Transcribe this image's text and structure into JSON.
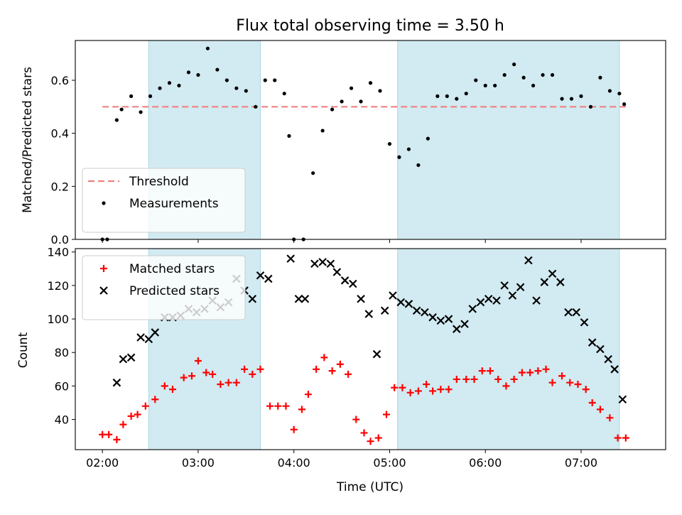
{
  "chart_data": [
    {
      "type": "scatter",
      "title": "Flux total observing time = 3.50 h",
      "xlabel": "",
      "ylabel": "Matched/Predicted stars",
      "xlim": [
        "01:43",
        "07:53"
      ],
      "ylim": [
        0,
        0.75
      ],
      "yticks": [
        0.0,
        0.2,
        0.4,
        0.6
      ],
      "ytick_labels": [
        "0.0",
        "0.2",
        "0.4",
        "0.6"
      ],
      "legend_position": "lower-left",
      "shaded_intervals": [
        [
          "02:29",
          "03:39"
        ],
        [
          "05:05",
          "07:24"
        ]
      ],
      "shade_color": "#add8e6",
      "threshold": {
        "name": "Threshold",
        "value": 0.5,
        "x_range": [
          "02:00",
          "07:28"
        ],
        "color": "#f08080",
        "style": "dashed"
      },
      "series": [
        {
          "name": "Measurements",
          "color": "#000000",
          "marker": "dot",
          "x": [
            "02:00",
            "02:03",
            "02:09",
            "02:12",
            "02:18",
            "02:24",
            "02:30",
            "02:36",
            "02:42",
            "02:48",
            "02:54",
            "03:00",
            "03:06",
            "03:12",
            "03:18",
            "03:24",
            "03:30",
            "03:36",
            "03:42",
            "03:48",
            "03:54",
            "03:57",
            "04:00",
            "04:06",
            "04:12",
            "04:18",
            "04:24",
            "04:30",
            "04:36",
            "04:42",
            "04:48",
            "04:54",
            "05:00",
            "05:06",
            "05:12",
            "05:18",
            "05:24",
            "05:30",
            "05:36",
            "05:42",
            "05:48",
            "05:54",
            "06:00",
            "06:06",
            "06:12",
            "06:18",
            "06:24",
            "06:30",
            "06:36",
            "06:42",
            "06:48",
            "06:54",
            "07:00",
            "07:06",
            "07:12",
            "07:18",
            "07:24",
            "07:27"
          ],
          "y": [
            0.0,
            0.0,
            0.45,
            0.49,
            0.54,
            0.48,
            0.54,
            0.57,
            0.59,
            0.58,
            0.63,
            0.62,
            0.72,
            0.64,
            0.6,
            0.57,
            0.56,
            0.5,
            0.6,
            0.6,
            0.55,
            0.39,
            0.0,
            0.0,
            0.25,
            0.41,
            0.49,
            0.52,
            0.57,
            0.52,
            0.59,
            0.56,
            0.36,
            0.31,
            0.34,
            0.28,
            0.38,
            0.54,
            0.54,
            0.53,
            0.55,
            0.6,
            0.58,
            0.58,
            0.62,
            0.66,
            0.61,
            0.58,
            0.62,
            0.62,
            0.53,
            0.53,
            0.54,
            0.5,
            0.61,
            0.56,
            0.55,
            0.51
          ]
        }
      ]
    },
    {
      "type": "scatter",
      "title": "",
      "xlabel": "Time (UTC)",
      "ylabel": "Count",
      "xlim": [
        "01:43",
        "07:53"
      ],
      "ylim": [
        22,
        142
      ],
      "xticks": [
        "02:00",
        "03:00",
        "04:00",
        "05:00",
        "06:00",
        "07:00"
      ],
      "xtick_labels": [
        "02:00",
        "03:00",
        "04:00",
        "05:00",
        "06:00",
        "07:00"
      ],
      "yticks": [
        40,
        60,
        80,
        100,
        120,
        140
      ],
      "ytick_labels": [
        "40",
        "60",
        "80",
        "100",
        "120",
        "140"
      ],
      "legend_position": "top-left",
      "shaded_intervals": [
        [
          "02:29",
          "03:39"
        ],
        [
          "05:05",
          "07:24"
        ]
      ],
      "shade_color": "#add8e6",
      "series": [
        {
          "name": "Matched stars",
          "color": "#ff0000",
          "marker": "plus",
          "x": [
            "02:00",
            "02:04",
            "02:09",
            "02:13",
            "02:18",
            "02:22",
            "02:27",
            "02:33",
            "02:39",
            "02:44",
            "02:51",
            "02:56",
            "03:00",
            "03:05",
            "03:09",
            "03:14",
            "03:19",
            "03:24",
            "03:29",
            "03:34",
            "03:39",
            "03:45",
            "03:50",
            "03:55",
            "04:00",
            "04:05",
            "04:09",
            "04:14",
            "04:19",
            "04:24",
            "04:29",
            "04:34",
            "04:39",
            "04:44",
            "04:48",
            "04:53",
            "04:58",
            "05:03",
            "05:08",
            "05:13",
            "05:18",
            "05:23",
            "05:27",
            "05:32",
            "05:37",
            "05:42",
            "05:48",
            "05:53",
            "05:58",
            "06:03",
            "06:08",
            "06:13",
            "06:18",
            "06:23",
            "06:28",
            "06:33",
            "06:38",
            "06:42",
            "06:48",
            "06:53",
            "06:58",
            "07:03",
            "07:07",
            "07:12",
            "07:18",
            "07:23",
            "07:28"
          ],
          "y": [
            31,
            31,
            28,
            37,
            42,
            43,
            48,
            52,
            60,
            58,
            65,
            66,
            75,
            68,
            67,
            61,
            62,
            62,
            70,
            67,
            70,
            48,
            48,
            48,
            34,
            46,
            55,
            70,
            77,
            69,
            73,
            67,
            40,
            32,
            27,
            29,
            43,
            59,
            59,
            56,
            57,
            61,
            57,
            58,
            58,
            64,
            64,
            64,
            69,
            69,
            64,
            60,
            64,
            68,
            68,
            69,
            70,
            62,
            66,
            62,
            61,
            58,
            50,
            46,
            41,
            29,
            29
          ]
        },
        {
          "name": "Predicted stars",
          "color": "#000000",
          "marker": "x",
          "x": [
            "02:09",
            "02:13",
            "02:18",
            "02:24",
            "02:29",
            "02:33",
            "02:39",
            "02:44",
            "02:49",
            "02:54",
            "02:59",
            "03:04",
            "03:09",
            "03:14",
            "03:19",
            "03:24",
            "03:29",
            "03:34",
            "03:39",
            "03:44",
            "03:58",
            "04:03",
            "04:07",
            "04:13",
            "04:18",
            "04:23",
            "04:27",
            "04:32",
            "04:37",
            "04:42",
            "04:47",
            "04:52",
            "04:57",
            "05:02",
            "05:07",
            "05:12",
            "05:17",
            "05:22",
            "05:27",
            "05:32",
            "05:37",
            "05:42",
            "05:47",
            "05:52",
            "05:57",
            "06:02",
            "06:07",
            "06:12",
            "06:17",
            "06:22",
            "06:27",
            "06:32",
            "06:37",
            "06:42",
            "06:47",
            "06:52",
            "06:57",
            "07:02",
            "07:07",
            "07:12",
            "07:17",
            "07:21",
            "07:26"
          ],
          "y": [
            62,
            76,
            77,
            89,
            88,
            92,
            101,
            101,
            102,
            106,
            104,
            106,
            111,
            107,
            110,
            124,
            117,
            112,
            126,
            124,
            136,
            112,
            112,
            133,
            134,
            133,
            128,
            123,
            121,
            112,
            103,
            79,
            105,
            114,
            110,
            109,
            105,
            104,
            101,
            99,
            100,
            94,
            97,
            106,
            110,
            112,
            111,
            120,
            114,
            119,
            135,
            111,
            122,
            127,
            122,
            104,
            104,
            98,
            86,
            82,
            76,
            70,
            52
          ]
        }
      ]
    }
  ]
}
